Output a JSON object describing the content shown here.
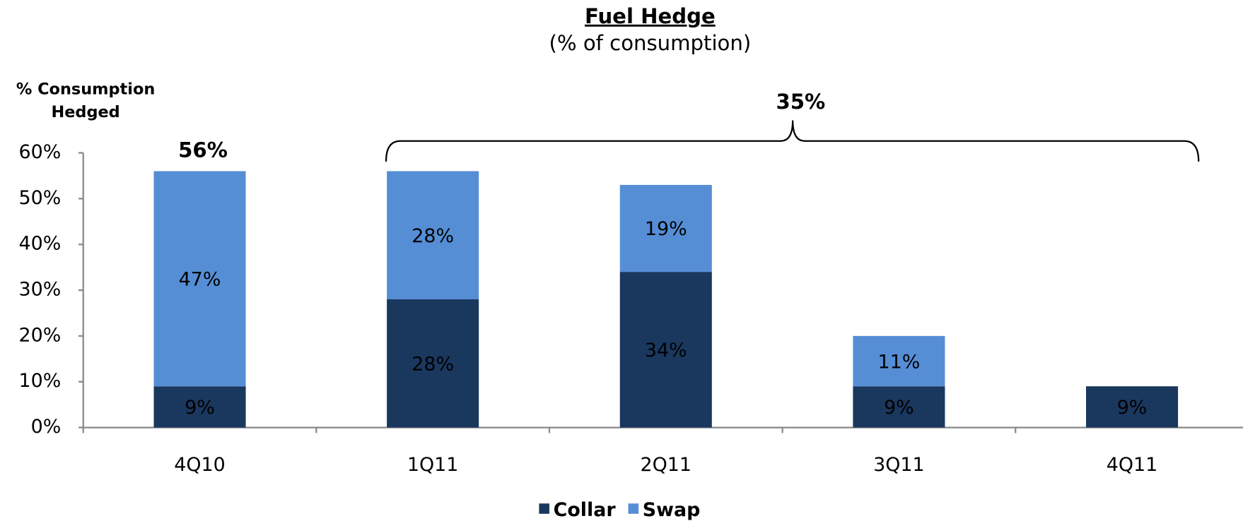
{
  "chart_data": {
    "type": "stacked_bar",
    "title": "Fuel Hedge",
    "subtitle": "(% of consumption)",
    "ylabel": [
      "% Consumption",
      "Hedged"
    ],
    "categories": [
      "4Q10",
      "1Q11",
      "2Q11",
      "3Q11",
      "4Q11"
    ],
    "series": [
      {
        "name": "Collar",
        "color": "#1a375e",
        "label_color": "#ffffff",
        "values": [
          9,
          28,
          34,
          9,
          9
        ],
        "value_labels": [
          "9%",
          "28%",
          "34%",
          "9%",
          "9%"
        ]
      },
      {
        "name": "Swap",
        "color": "#558ed5",
        "label_color": "#000000",
        "values": [
          47,
          28,
          19,
          11,
          null
        ],
        "value_labels": [
          "47%",
          "28%",
          "19%",
          "11%",
          null
        ]
      }
    ],
    "ylim": [
      0,
      60
    ],
    "yticks": [
      {
        "value": 0,
        "label": "0%"
      },
      {
        "value": 10,
        "label": "10%"
      },
      {
        "value": 20,
        "label": "20%"
      },
      {
        "value": 30,
        "label": "30%"
      },
      {
        "value": 40,
        "label": "40%"
      },
      {
        "value": 50,
        "label": "50%"
      },
      {
        "value": 60,
        "label": "60%"
      }
    ],
    "annotations": [
      {
        "text": "56%"
      },
      {
        "text": "35%"
      }
    ],
    "legend": "bottom"
  }
}
